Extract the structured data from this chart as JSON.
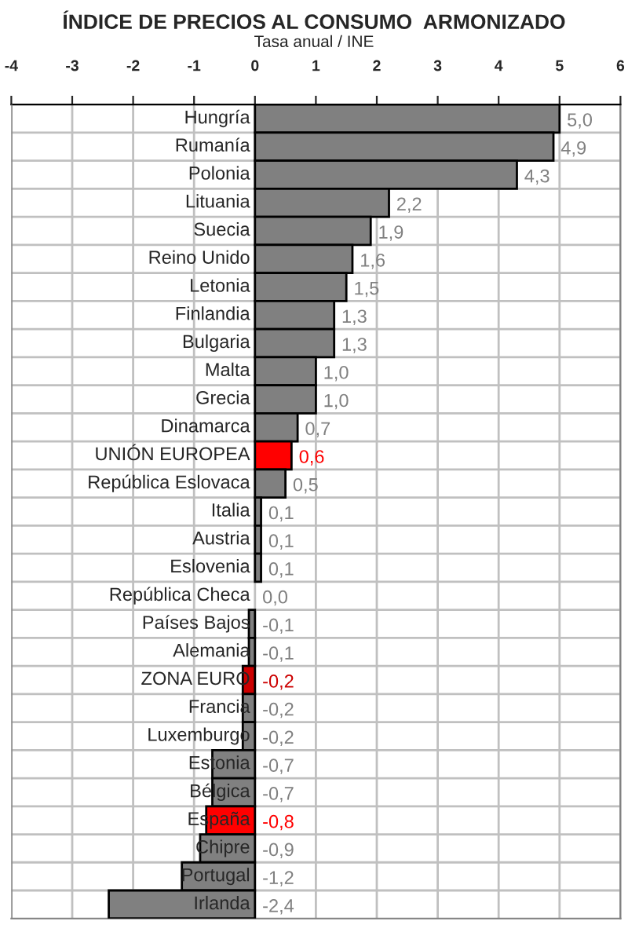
{
  "chart_data": {
    "type": "bar",
    "orientation": "horizontal",
    "title": "ÍNDICE DE PRECIOS AL CONSUMO  ARMONIZADO",
    "subtitle": "Tasa anual / INE",
    "categories": [
      "Hungría",
      "Rumanía",
      "Polonia",
      "Lituania",
      "Suecia",
      "Reino Unido",
      "Letonia",
      "Finlandia",
      "Bulgaria",
      "Malta",
      "Grecia",
      "Dinamarca",
      "UNIÓN EUROPEA",
      "República Eslovaca",
      "Italia",
      "Austria",
      "Eslovenia",
      "República Checa",
      "Países Bajos",
      "Alemania",
      "ZONA EURO",
      "Francia",
      "Luxemburgo",
      "Estonia",
      "Bélgica",
      "España",
      "Chipre",
      "Portugal",
      "Irlanda"
    ],
    "values": [
      5.0,
      4.9,
      4.3,
      2.2,
      1.9,
      1.6,
      1.5,
      1.3,
      1.3,
      1.0,
      1.0,
      0.7,
      0.6,
      0.5,
      0.1,
      0.1,
      0.1,
      0.0,
      -0.1,
      -0.1,
      -0.2,
      -0.2,
      -0.2,
      -0.7,
      -0.7,
      -0.8,
      -0.9,
      -1.2,
      -2.4
    ],
    "value_labels": [
      "5,0",
      "4,9",
      "4,3",
      "2,2",
      "1,9",
      "1,6",
      "1,5",
      "1,3",
      "1,3",
      "1,0",
      "1,0",
      "0,7",
      "0,6",
      "0,5",
      "0,1",
      "0,1",
      "0,1",
      "0,0",
      "-0,1",
      "-0,1",
      "-0,2",
      "-0,2",
      "-0,2",
      "-0,7",
      "-0,7",
      "-0,8",
      "-0,9",
      "-1,2",
      "-2,4"
    ],
    "colors": [
      "#808080",
      "#808080",
      "#808080",
      "#808080",
      "#808080",
      "#808080",
      "#808080",
      "#808080",
      "#808080",
      "#808080",
      "#808080",
      "#808080",
      "#ff0000",
      "#808080",
      "#808080",
      "#808080",
      "#808080",
      "#808080",
      "#808080",
      "#808080",
      "#cc0000",
      "#808080",
      "#808080",
      "#808080",
      "#808080",
      "#ff0000",
      "#808080",
      "#808080",
      "#808080"
    ],
    "xlim": [
      -4,
      6
    ],
    "xticks": [
      -4,
      -3,
      -2,
      -1,
      0,
      1,
      2,
      3,
      4,
      5,
      6
    ],
    "grid": true,
    "legend": false
  }
}
